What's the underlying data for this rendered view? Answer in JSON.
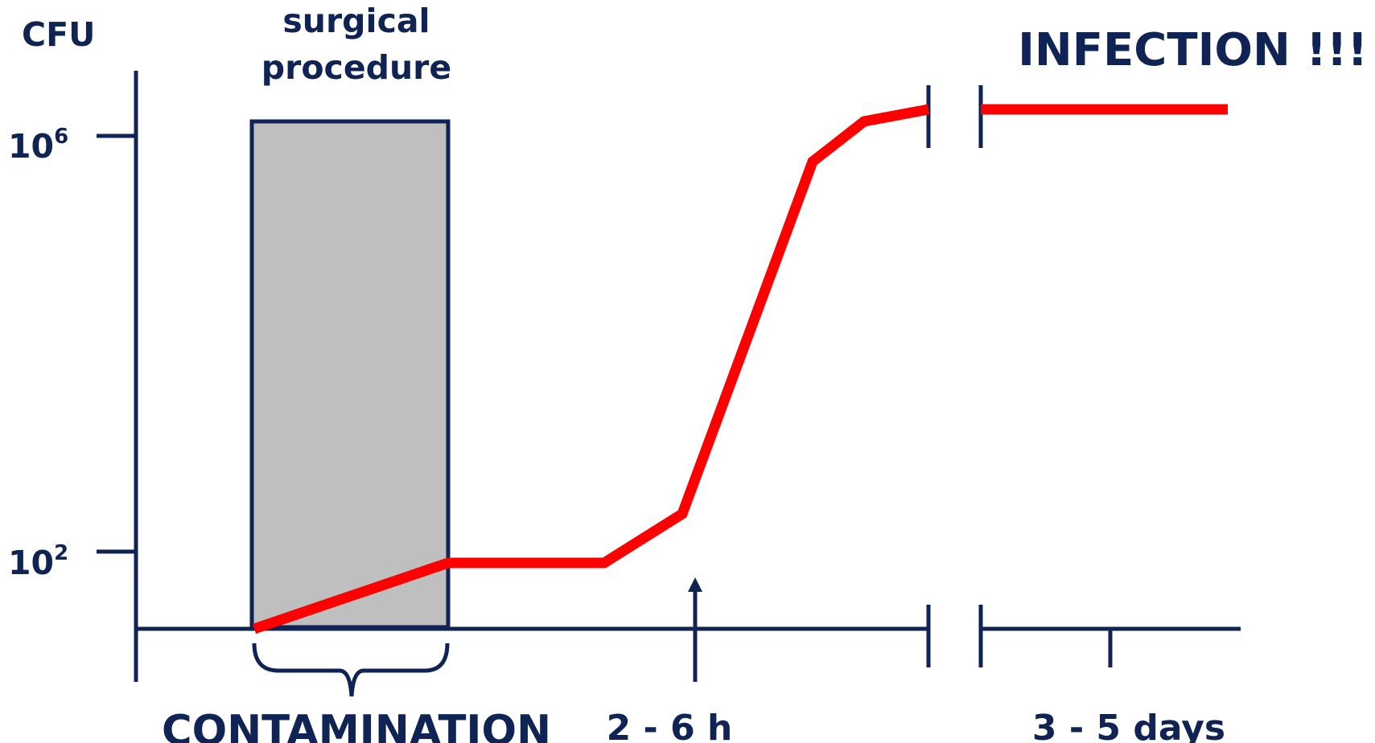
{
  "colors": {
    "axis": "#0f2355",
    "curve": "#ff0000",
    "procedure_fill": "#bfbfbf",
    "procedure_stroke": "#0f2355",
    "text": "#0f2355"
  },
  "y_axis": {
    "unit_label": "CFU",
    "ticks": [
      {
        "base": "10",
        "exponent": "6"
      },
      {
        "base": "10",
        "exponent": "2"
      }
    ]
  },
  "procedure": {
    "label_line1": "surgical",
    "label_line2": "procedure"
  },
  "annotations": {
    "infection": "INFECTION !!!",
    "contamination": "CONTAMINATION",
    "early_window": "2 - 6 h",
    "late_window": "3 - 5 days"
  },
  "curve_description": {
    "start_level": "below 10^2",
    "end_of_procedure_level": "10^2",
    "final_level": "above 10^6"
  }
}
